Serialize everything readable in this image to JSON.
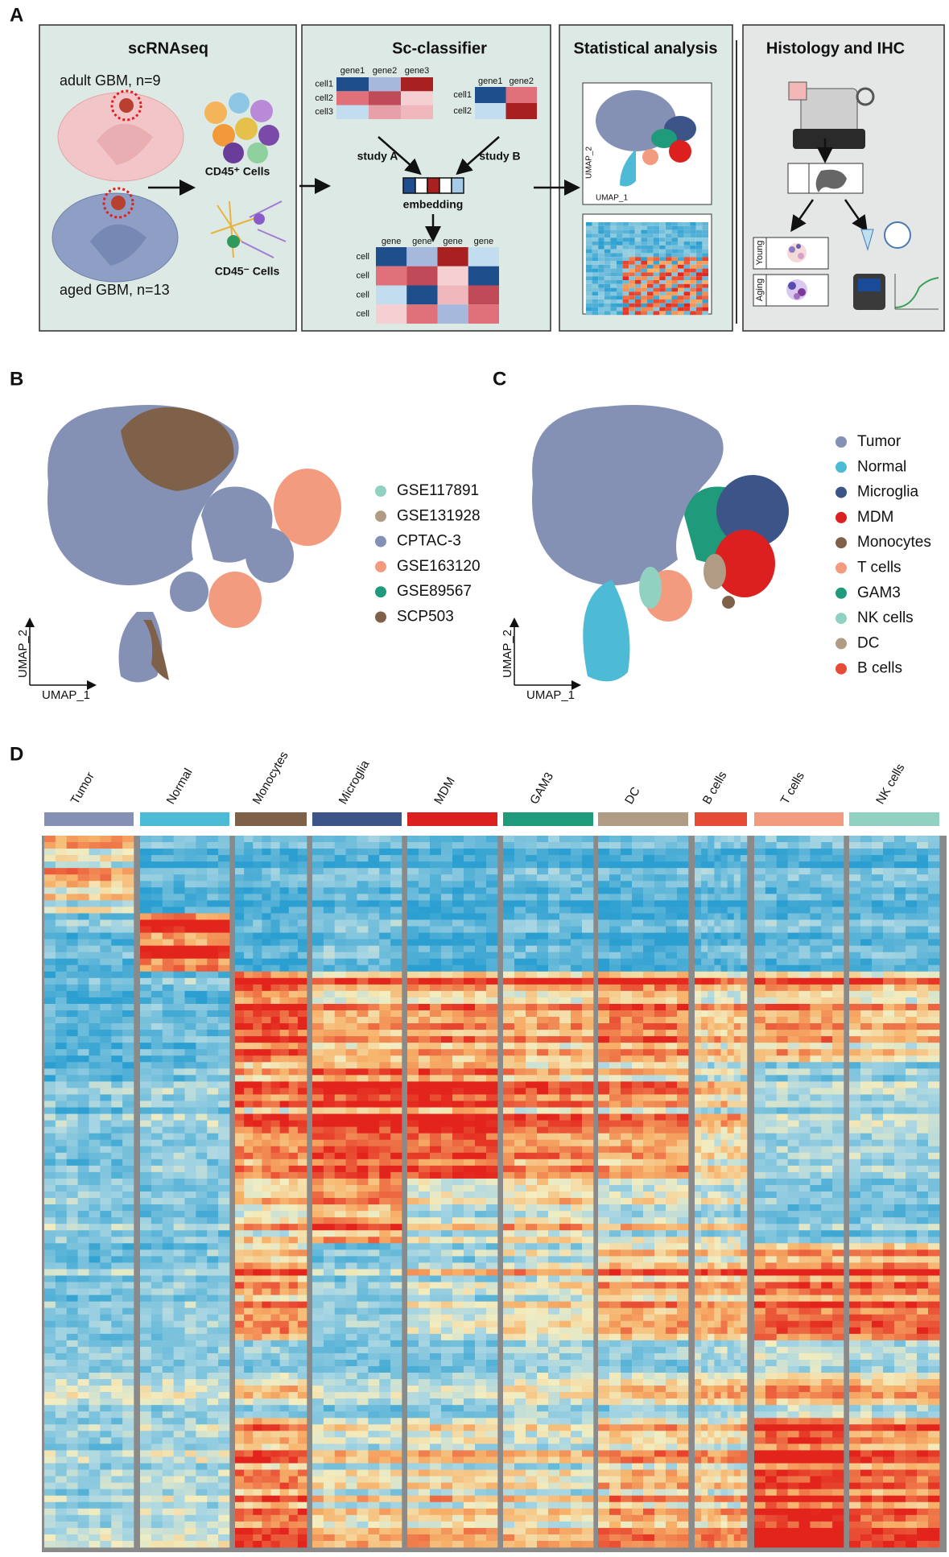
{
  "panel_a": {
    "label": "A",
    "scrnaseq": {
      "title": "scRNAseq",
      "adult": "adult GBM, n=9",
      "aged": "aged GBM, n=13",
      "cd45_pos": "CD45⁺ Cells",
      "cd45_neg": "CD45⁻ Cells"
    },
    "classifier": {
      "title": "Sc-classifier",
      "study_a": {
        "genes": [
          "gene1",
          "gene2",
          "gene3"
        ],
        "cells": [
          "cell1",
          "cell2",
          "cell3"
        ],
        "label": "study A"
      },
      "study_b": {
        "genes": [
          "gene1",
          "gene2"
        ],
        "cells": [
          "cell1",
          "cell2"
        ],
        "label": "study B"
      },
      "embedding": "embedding",
      "matrix": {
        "genes": [
          "gene",
          "gene",
          "gene",
          "gene"
        ],
        "cells": [
          "cell",
          "cell",
          "cell",
          "cell"
        ]
      }
    },
    "stats": {
      "title": "Statistical analysis",
      "umap_y": "UMAP_2",
      "umap_x": "UMAP_1"
    },
    "histology": {
      "title": "Histology and IHC",
      "young": "Young",
      "aging": "Aging"
    }
  },
  "panel_b": {
    "label": "B",
    "x_label": "UMAP_1",
    "y_label": "UMAP_2",
    "legend": [
      {
        "name": "GSE117891",
        "color": "#91d1c2"
      },
      {
        "name": "GSE131928",
        "color": "#b09c85"
      },
      {
        "name": "CPTAC-3",
        "color": "#8491b4"
      },
      {
        "name": "GSE163120",
        "color": "#f39b7f"
      },
      {
        "name": "GSE89567",
        "color": "#1f9a7a"
      },
      {
        "name": "SCP503",
        "color": "#7e6148"
      }
    ]
  },
  "panel_c": {
    "label": "C",
    "x_label": "UMAP_1",
    "y_label": "UMAP_2",
    "legend": [
      {
        "name": "Tumor",
        "color": "#8491b4"
      },
      {
        "name": "Normal",
        "color": "#4dbbd5"
      },
      {
        "name": "Microglia",
        "color": "#3c5488"
      },
      {
        "name": "MDM",
        "color": "#dc2020"
      },
      {
        "name": "Monocytes",
        "color": "#7e6148"
      },
      {
        "name": "T cells",
        "color": "#f39b7f"
      },
      {
        "name": "GAM3",
        "color": "#1f9a7a"
      },
      {
        "name": "NK cells",
        "color": "#91d1c2"
      },
      {
        "name": "DC",
        "color": "#b09c85"
      },
      {
        "name": "B cells",
        "color": "#e64b35"
      }
    ]
  },
  "panel_d": {
    "label": "D",
    "groups": [
      {
        "name": "Tumor",
        "color": "#8491b4"
      },
      {
        "name": "Normal",
        "color": "#4dbbd5"
      },
      {
        "name": "Monocytes",
        "color": "#7e6148"
      },
      {
        "name": "Microglia",
        "color": "#3c5488"
      },
      {
        "name": "MDM",
        "color": "#dc2020"
      },
      {
        "name": "GAM3",
        "color": "#1f9a7a"
      },
      {
        "name": "DC",
        "color": "#b09c85"
      },
      {
        "name": "B cells",
        "color": "#e64b35"
      },
      {
        "name": "T cells",
        "color": "#f39b7f"
      },
      {
        "name": "NK cells",
        "color": "#91d1c2"
      }
    ]
  }
}
